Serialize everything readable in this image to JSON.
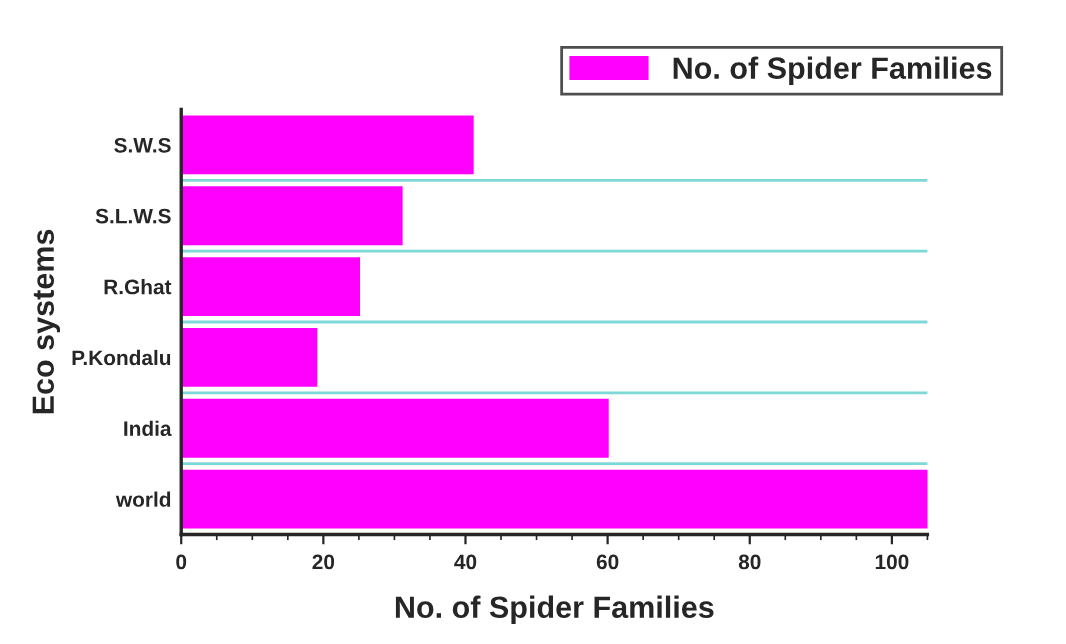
{
  "chart_data": {
    "type": "bar",
    "orientation": "horizontal",
    "xlabel": "No. of Spider Families",
    "ylabel": "Eco systems",
    "categories": [
      "S.W.S",
      "S.L.W.S",
      "R.Ghat",
      "P.Kondalu",
      "India",
      "world"
    ],
    "series": [
      {
        "name": "No. of Spider Families",
        "color": "#ff00ff",
        "values": [
          41,
          31,
          25,
          19,
          60,
          105
        ]
      }
    ],
    "xlim": [
      0,
      105
    ],
    "xticks": [
      0,
      20,
      40,
      60,
      80,
      100
    ],
    "grid": "y",
    "legend": "top right"
  }
}
